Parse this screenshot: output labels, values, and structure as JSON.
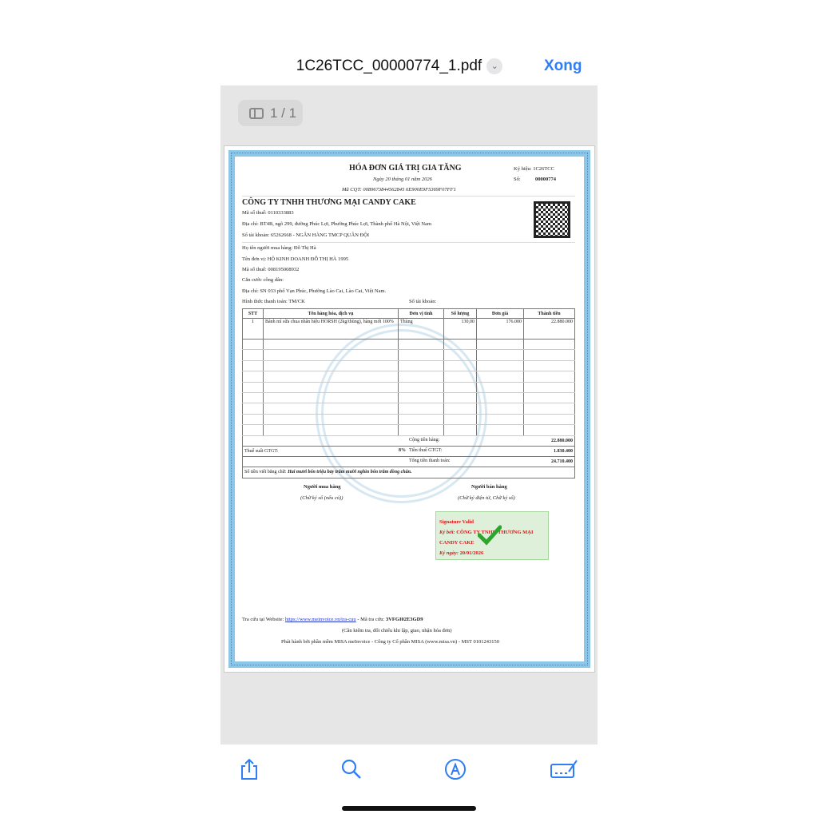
{
  "header": {
    "filename": "1C26TCC_00000774_1.pdf",
    "done_label": "Xong"
  },
  "viewer": {
    "page_indicator": "1 / 1"
  },
  "invoice": {
    "title": "HÓA ĐƠN GIÁ TRỊ GIA TĂNG",
    "date": "Ngày 20 tháng 01 năm 2026",
    "cqt_code": "Mã CQT: 0089673844562845 6E900E9F5369F07FF1",
    "symbol_label": "Ký hiệu:",
    "symbol": "1C26TCC",
    "number_label": "Số:",
    "number": "00000774",
    "seller": {
      "name": "CÔNG TY TNHH THƯƠNG MẠI CANDY CAKE",
      "tax": "Mã số thuế: 0110333883",
      "address": "Địa chỉ: BT4B, ngõ 299, đường Phúc Lợi, Phường Phúc Lợi, Thành phố Hà Nội, Việt Nam",
      "account": "Số tài khoản: 65262668 - NGÂN HÀNG TMCP QUÂN ĐỘI"
    },
    "buyer": {
      "name": "Họ tên người mua hàng: Đỗ Thị Hà",
      "unit": "Tên đơn vị: HỘ KINH DOANH ĐỖ THỊ HÀ 1995",
      "tax": "Mã số thuế: 008195008932",
      "id": "Căn cước công dân:",
      "address": "Địa chỉ: SN 033 phố Vạn Phúc, Phường Lào Cai, Lào Cai, Việt Nam.",
      "payment": "Hình thức thanh toán: TM/CK",
      "account": "Số tài khoản:"
    },
    "columns": [
      "STT",
      "Tên hàng hóa, dịch vụ",
      "Đơn vị tính",
      "Số lượng",
      "Đơn giá",
      "Thành tiền"
    ],
    "items": [
      {
        "stt": "1",
        "name": "Bánh mì sữa chua nhãn hiệu HORSH (2kg/thùng), hàng mới 100%",
        "unit": "Thùng",
        "qty": "130,00",
        "price": "176.000",
        "total": "22.880.000"
      }
    ],
    "subtotal_label": "Cộng tiền hàng:",
    "subtotal": "22.880.000",
    "vat_rate_label": "Thuế suất GTGT:",
    "vat_rate": "8%",
    "vat_label": "Tiền thuế GTGT:",
    "vat": "1.830.400",
    "total_label": "Tổng tiền thanh toán:",
    "total": "24.710.400",
    "words_label": "Số tiền viết bằng chữ:",
    "words": "Hai mươi bốn triệu bảy trăm mười nghìn bốn trăm đồng chẵn.",
    "buyer_sign": "Người mua hàng",
    "buyer_sign_note": "(Chữ ký số (nếu có))",
    "seller_sign": "Người bán hàng",
    "seller_sign_note": "(Chữ ký điện tử, Chữ ký số)",
    "signature": {
      "status": "Signature Valid",
      "signed_by_label": "Ký bởi:",
      "signed_by": "CÔNG TY TNHH THƯƠNG MẠI CANDY CAKE",
      "date_label": "Ký ngày:",
      "date": "20/01/2026"
    },
    "lookup_prefix": "Tra cứu tại Website:",
    "lookup_url": "https://www.meinvoice.vn/tra-cuu",
    "lookup_code_label": " - Mã tra cứu:",
    "lookup_code": "3VFGI02E3GD9",
    "note": "(Cần kiểm tra, đối chiếu khi lập, giao, nhận hóa đơn)",
    "publisher": "Phát hành bởi phần mềm MISA meInvoice - Công ty Cổ phần MISA (www.misa.vn) - MST 0101243150"
  },
  "toolbar": {
    "icons": [
      "share-icon",
      "search-icon",
      "markup-icon",
      "signature-icon"
    ]
  }
}
